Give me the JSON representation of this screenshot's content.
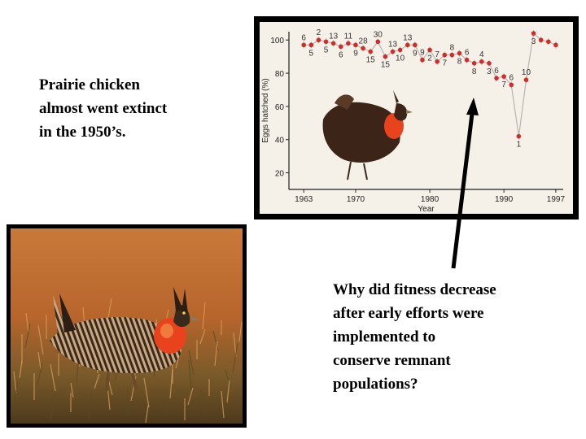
{
  "slide": {
    "left_text": [
      "Prairie chicken",
      "almost went extinct",
      "in the 1950’s."
    ],
    "right_text": [
      "Why did fitness decrease",
      "after early efforts were",
      "implemented to",
      "conserve remnant",
      "populations?"
    ]
  },
  "colors": {
    "chart_bg": "#f6f1e8",
    "point": "#d42a2a",
    "line": "#b9b3b3",
    "bird_dark": "#3d2418",
    "air_sac": "#e8431c",
    "arrow": "#000000"
  },
  "icons": [
    "prairie-chicken-drawing",
    "prairie-chicken-photo",
    "arrow-pointer"
  ],
  "chart_data": {
    "type": "line",
    "xlabel": "Year",
    "ylabel": "Eggs hatched (%)",
    "xlim": [
      1961,
      1998
    ],
    "ylim": [
      10,
      105
    ],
    "x_ticks": [
      1963,
      1970,
      1980,
      1990,
      1997
    ],
    "y_ticks": [
      20,
      40,
      60,
      80,
      100
    ],
    "series": [
      {
        "x": [
          1963,
          1964,
          1965,
          1966,
          1967,
          1968,
          1969,
          1970,
          1971,
          1972,
          1973,
          1974,
          1975,
          1976,
          1977,
          1978,
          1979,
          1980,
          1981,
          1982,
          1983,
          1984,
          1985,
          1986,
          1987,
          1988,
          1989,
          1990,
          1991,
          1992,
          1993,
          1994,
          1995,
          1996,
          1997
        ],
        "y": [
          97,
          97,
          100,
          99,
          98,
          96,
          98,
          97,
          95,
          93,
          99,
          90,
          93,
          94,
          97,
          97,
          88,
          94,
          87,
          91,
          91,
          92,
          88,
          86,
          87,
          86,
          77,
          78,
          73,
          42,
          76,
          104,
          100,
          99,
          97
        ],
        "labels": [
          "6",
          "5",
          "2",
          "5",
          "13",
          "6",
          "11",
          "9",
          "28",
          "15",
          "30",
          "15",
          "13",
          "10",
          "13",
          "9",
          "9",
          "2",
          "7",
          "7",
          "8",
          "8",
          "6",
          "8",
          "4",
          "3",
          "6",
          "7",
          "6",
          "1",
          "10",
          "3",
          "",
          "",
          ""
        ]
      }
    ]
  }
}
